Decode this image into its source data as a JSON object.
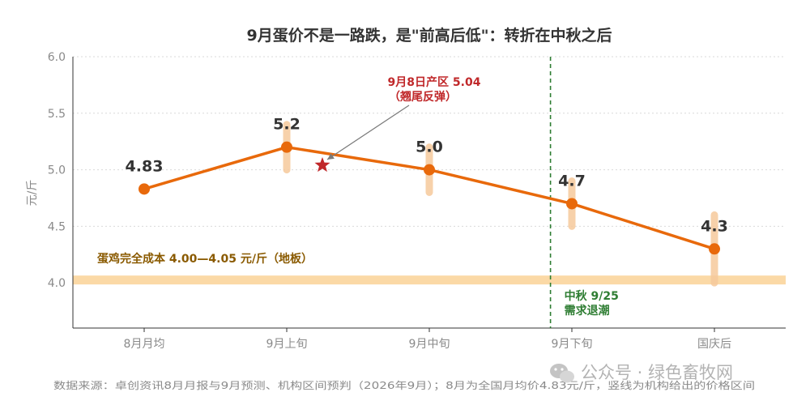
{
  "chart_data": {
    "type": "line",
    "title": "9月蛋价不是一路跌，是\"前高后低\"：转折在中秋之后",
    "ylabel": "元/斤",
    "xlabel": "",
    "categories": [
      "8月月均",
      "9月上旬",
      "9月中旬",
      "9月下旬",
      "国庆后"
    ],
    "ylim": [
      3.6,
      6.0
    ],
    "yticks": [
      "4.0",
      "4.5",
      "5.0",
      "5.5",
      "6.0"
    ],
    "grid": true,
    "series": [
      {
        "values": [
          4.83,
          5.2,
          5.0,
          4.7,
          4.3
        ],
        "color": "#e8690b"
      }
    ],
    "data_labels": [
      "4.83",
      "5.2",
      "5.0",
      "4.7",
      "4.3"
    ],
    "ranges": [
      {
        "category": "9月上旬",
        "low": 5.0,
        "high": 5.4
      },
      {
        "category": "9月中旬",
        "low": 4.8,
        "high": 5.2
      },
      {
        "category": "9月下旬",
        "low": 4.5,
        "high": 4.9
      },
      {
        "category": "国庆后",
        "low": 4.0,
        "high": 4.6
      }
    ],
    "range_color": "#f6c99c",
    "marker_point": {
      "x_between": [
        "9月上旬",
        "9月中旬"
      ],
      "x_fraction": 0.25,
      "y": 5.04,
      "color": "#c0282a"
    },
    "annotations": {
      "marker_line1": "9月8日产区 5.04",
      "marker_line2": "（翘尾反弹）",
      "vline_line1": "中秋 9/25",
      "vline_line2": "需求退潮",
      "floor_label": "蛋鸡完全成本 4.00—4.05 元/斤（地板）"
    },
    "vline": {
      "x_category": "9月下旬",
      "x_offset": -0.15,
      "color": "#2e7d32"
    },
    "floor_band": {
      "low": 4.0,
      "high": 4.05,
      "color": "#fbd9a6"
    }
  },
  "footer": {
    "source": "数据来源：卓创资讯8月月报与9月预测、机构区间预判（2026年9月）；8月为全国月均价4.83元/斤，竖线为机构给出的价格区间",
    "watermark": "公众号 · 绿色畜牧网"
  }
}
